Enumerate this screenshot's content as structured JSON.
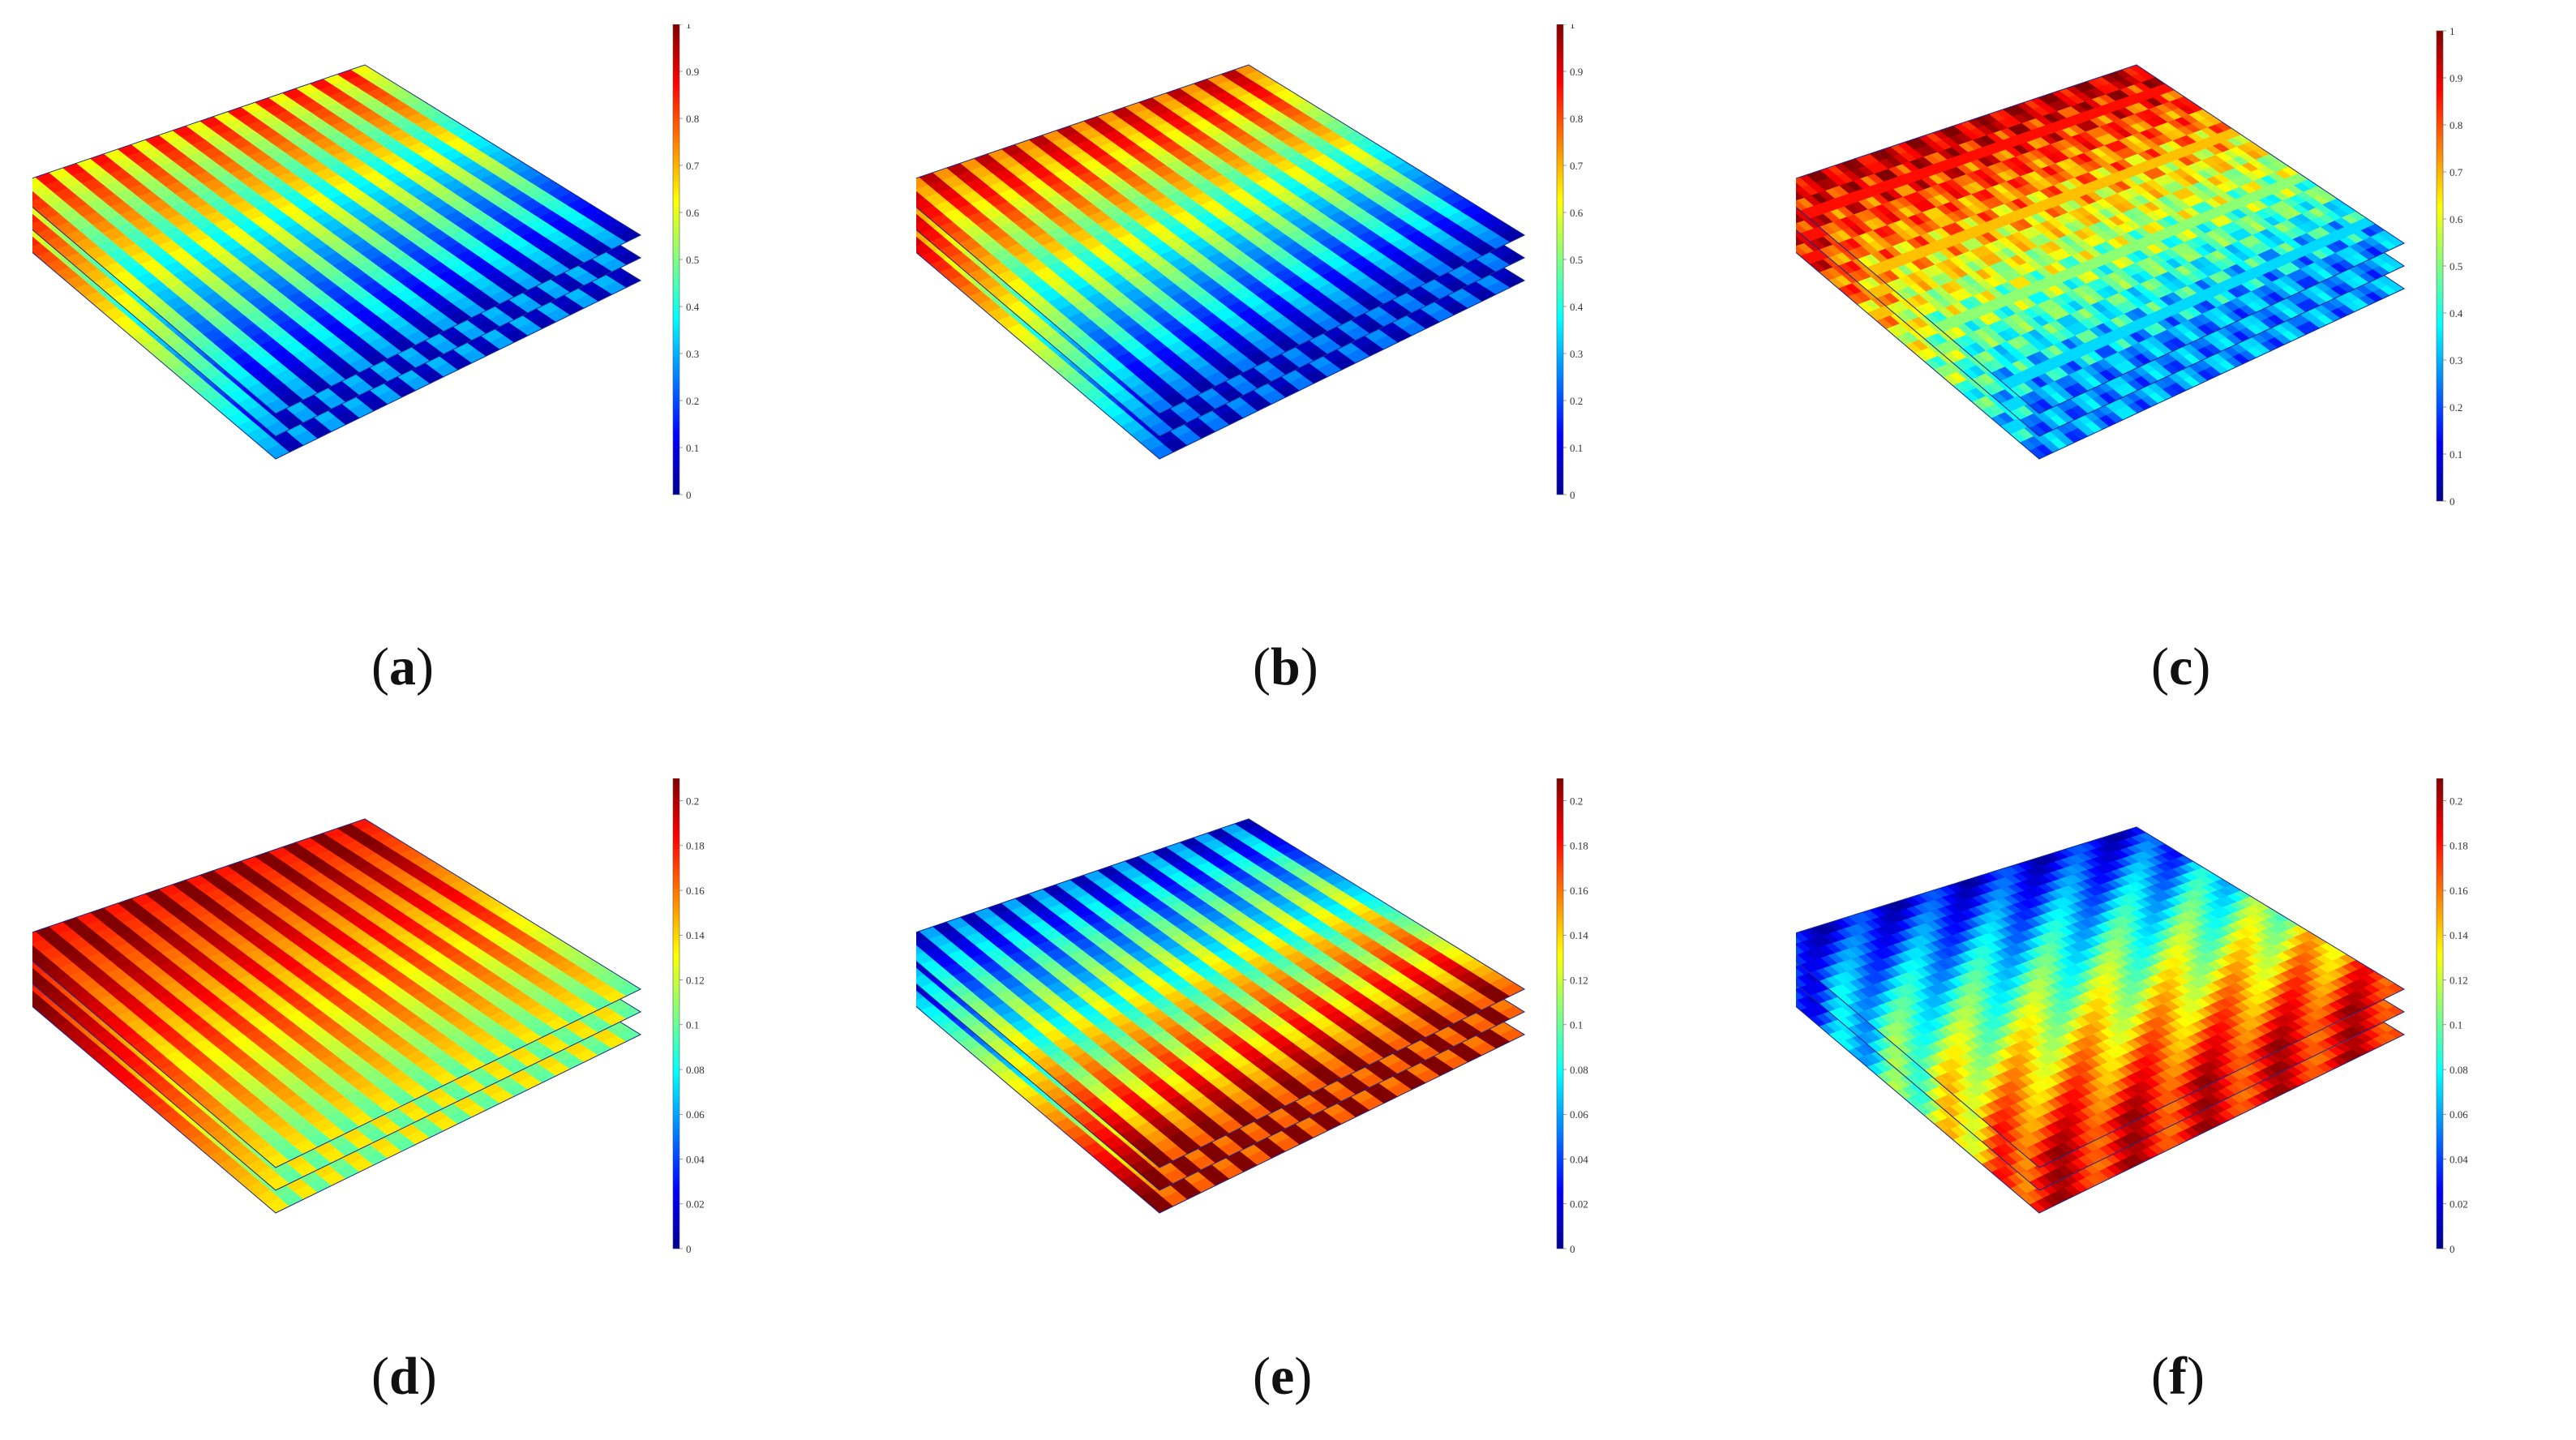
{
  "colors": {
    "jet": [
      "#00008f",
      "#0000ff",
      "#0080ff",
      "#00ffff",
      "#80ff80",
      "#ffff00",
      "#ff8000",
      "#ff0000",
      "#800000"
    ],
    "edge": "#1d2b8a"
  },
  "panels": [
    {
      "label": "a",
      "scale_max": 1,
      "ticks": [
        "0",
        "0.1",
        "0.2",
        "0.3",
        "0.4",
        "0.5",
        "0.6",
        "0.7",
        "0.8",
        "0.9",
        "1"
      ],
      "pattern": "stripes",
      "field": {
        "front": 0.75,
        "back": 0.15,
        "stripe_contrast": 0.35
      }
    },
    {
      "label": "b",
      "scale_max": 1,
      "ticks": [
        "0",
        "0.1",
        "0.2",
        "0.3",
        "0.4",
        "0.5",
        "0.6",
        "0.7",
        "0.8",
        "0.9",
        "1"
      ],
      "pattern": "stripes",
      "field": {
        "front": 0.85,
        "back": 0.12,
        "stripe_contrast": 0.3
      }
    },
    {
      "label": "c",
      "scale_max": 1,
      "ticks": [
        "0",
        "0.1",
        "0.2",
        "0.3",
        "0.4",
        "0.5",
        "0.6",
        "0.7",
        "0.8",
        "0.9",
        "1"
      ],
      "pattern": "dots",
      "field": {
        "front": 0.95,
        "back": 0.25,
        "stripe_contrast": 0.3
      }
    },
    {
      "label": "d",
      "scale_max": 0.21,
      "ticks": [
        "0",
        "0.02",
        "0.04",
        "0.06",
        "0.08",
        "0.1",
        "0.12",
        "0.14",
        "0.16",
        "0.18",
        "0.2"
      ],
      "pattern": "stripes",
      "field": {
        "front": 0.95,
        "back": 0.55,
        "stripe_contrast": 0.25
      }
    },
    {
      "label": "e",
      "scale_max": 0.21,
      "ticks": [
        "0",
        "0.02",
        "0.04",
        "0.06",
        "0.08",
        "0.1",
        "0.12",
        "0.14",
        "0.16",
        "0.18",
        "0.2"
      ],
      "pattern": "stripes",
      "field": {
        "front": 0.15,
        "back": 0.92,
        "stripe_contrast": 0.35
      }
    },
    {
      "label": "f",
      "scale_max": 0.21,
      "ticks": [
        "0",
        "0.02",
        "0.04",
        "0.06",
        "0.08",
        "0.1",
        "0.12",
        "0.14",
        "0.16",
        "0.18",
        "0.2"
      ],
      "pattern": "diagonal",
      "field": {
        "front": 0.1,
        "back": 0.9,
        "stripe_contrast": 0.2
      }
    }
  ]
}
